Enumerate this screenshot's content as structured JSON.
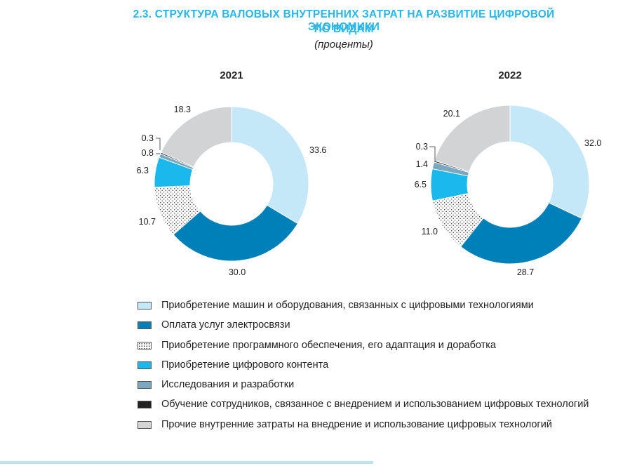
{
  "header": {
    "title_line1": "2.3. СТРУКТУРА ВАЛОВЫХ ВНУТРЕННИХ ЗАТРАТ НА РАЗВИТИЕ ЦИФРОВОЙ ЭКОНОМИКИ",
    "title_line2": "ПО ВИДАМ",
    "subtitle": "(проценты)"
  },
  "chart_data": [
    {
      "type": "pie",
      "variant": "donut",
      "title": "2021",
      "categories": [
        "Приобретение машин и оборудования, связанных с цифровыми технологиями",
        "Оплата услуг электросвязи",
        "Приобретение программного обеспечения, его адаптация и доработка",
        "Приобретение цифрового контента",
        "Исследования и разработки",
        "Обучение сотрудников, связанное с внедрением и использованием цифровых технологий",
        "Прочие внутренние затраты на внедрение и использование цифровых технологий"
      ],
      "values": [
        33.6,
        30.0,
        10.7,
        6.3,
        0.8,
        0.3,
        18.3
      ],
      "value_labels": [
        "33.6",
        "30.0",
        "10.7",
        "6.3",
        "0.8",
        "0.3",
        "18.3"
      ]
    },
    {
      "type": "pie",
      "variant": "donut",
      "title": "2022",
      "categories": [
        "Приобретение машин и оборудования, связанных с цифровыми технологиями",
        "Оплата услуг электросвязи",
        "Приобретение программного обеспечения, его адаптация и доработка",
        "Приобретение цифрового контента",
        "Исследования и разработки",
        "Обучение сотрудников, связанное с внедрением и использованием цифровых технологий",
        "Прочие внутренние затраты на внедрение и использование цифровых технологий"
      ],
      "values": [
        32.0,
        28.7,
        11.0,
        6.5,
        1.4,
        0.3,
        20.1
      ],
      "value_labels": [
        "32.0",
        "28.7",
        "11.0",
        "6.5",
        "1.4",
        "0.3",
        "20.1"
      ]
    }
  ],
  "legend": {
    "items": [
      {
        "label": "Приобретение машин и оборудования, связанных с цифровыми технологиями",
        "color": "#c5e8f8",
        "pattern": "solid"
      },
      {
        "label": "Оплата услуг электросвязи",
        "color": "#0080b8",
        "pattern": "solid"
      },
      {
        "label": "Приобретение программного обеспечения, его адаптация и доработка",
        "color": "#ffffff",
        "pattern": "dots"
      },
      {
        "label": "Приобретение цифрового контента",
        "color": "#1ab8ec",
        "pattern": "solid"
      },
      {
        "label": "Исследования и разработки",
        "color": "#7ba7bf",
        "pattern": "solid"
      },
      {
        "label": "Обучение сотрудников, связанное с внедрением и использованием цифровых технологий",
        "color": "#222222",
        "pattern": "solid"
      },
      {
        "label": "Прочие внутренние затраты на внедрение и использование цифровых технологий",
        "color": "#d2d3d5",
        "pattern": "solid"
      }
    ]
  }
}
